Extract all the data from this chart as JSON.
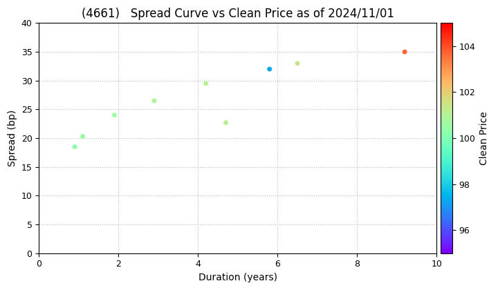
{
  "title": "(4661)   Spread Curve vs Clean Price as of 2024/11/01",
  "xlabel": "Duration (years)",
  "ylabel": "Spread (bp)",
  "colorbar_label": "Clean Price",
  "xlim": [
    0,
    10
  ],
  "ylim": [
    0,
    40
  ],
  "cmap_min": 95,
  "cmap_max": 105,
  "points": [
    {
      "duration": 0.9,
      "spread": 18.5,
      "price": 100.3
    },
    {
      "duration": 1.1,
      "spread": 20.3,
      "price": 100.4
    },
    {
      "duration": 1.9,
      "spread": 24.0,
      "price": 100.6
    },
    {
      "duration": 2.9,
      "spread": 26.5,
      "price": 100.9
    },
    {
      "duration": 4.2,
      "spread": 29.5,
      "price": 101.0
    },
    {
      "duration": 4.7,
      "spread": 22.7,
      "price": 101.1
    },
    {
      "duration": 5.8,
      "spread": 32.0,
      "price": 97.3
    },
    {
      "duration": 6.5,
      "spread": 33.0,
      "price": 101.4
    },
    {
      "duration": 9.2,
      "spread": 35.0,
      "price": 103.7
    }
  ],
  "colorbar_ticks": [
    96,
    98,
    100,
    102,
    104
  ],
  "grid_color": "#bbbbbb",
  "bg_color": "#ffffff",
  "title_fontsize": 12,
  "axis_fontsize": 10,
  "tick_fontsize": 9,
  "point_size": 25
}
